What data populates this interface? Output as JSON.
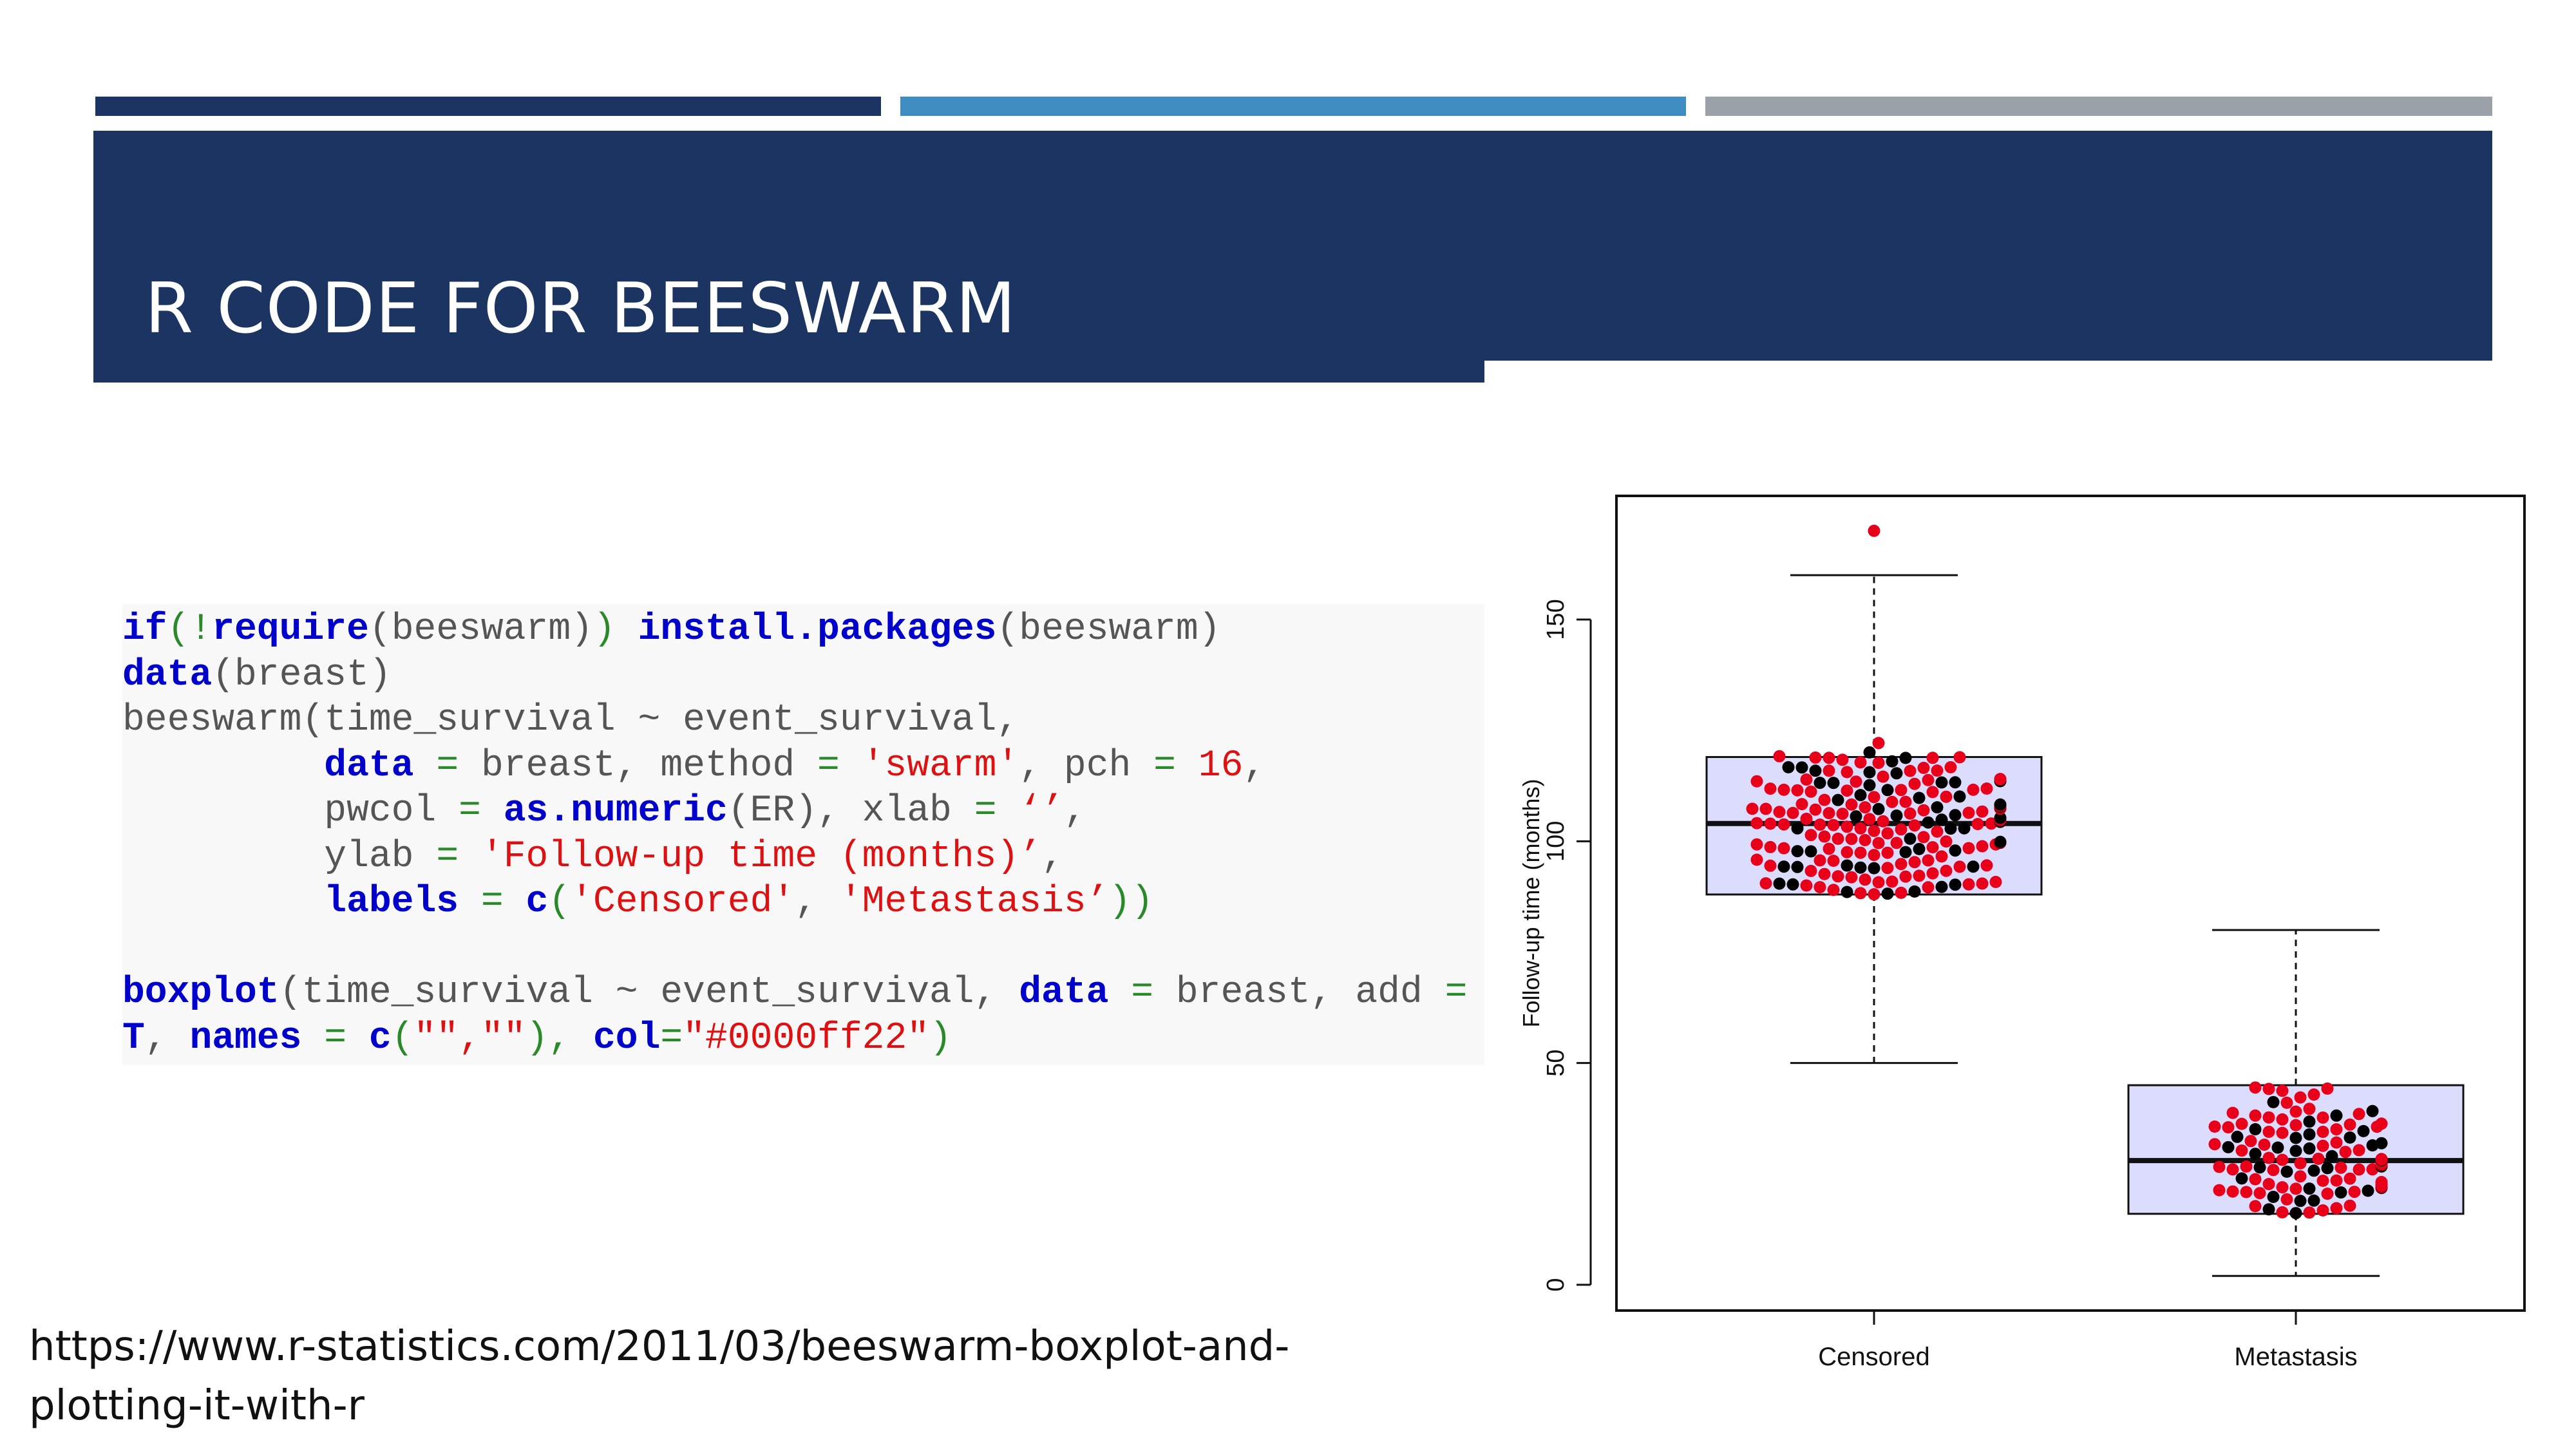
{
  "slide": {
    "title": "R CODE FOR BEESWARM",
    "source_url": "https://www.r-statistics.com/2011/03/beeswarm-boxplot-and-plotting-it-with-r"
  },
  "code": {
    "line1_if": "if",
    "line1_a": "(!",
    "line1_require": "require",
    "line1_b": "(beeswarm)",
    "line1_c": ")",
    "line1_install": "install.packages",
    "line1_d": "(beeswarm)",
    "line2_data": "data",
    "line2_a": "(breast)",
    "line3_a": "beeswarm(time_survival ~ event_survival,",
    "line4_data": "data",
    "line4_eq": "=",
    "line4_a": "breast, method",
    "line4_eq2": "=",
    "line4_swarm": "'swarm'",
    "line4_b": ", pch",
    "line4_eq3": "=",
    "line4_16": "16",
    "line4_c": ",",
    "line5_a": "pwcol",
    "line5_eq": "=",
    "line5_asnum": "as.numeric",
    "line5_b": "(ER)",
    "line5_c": ", xlab",
    "line5_eq2": "=",
    "line5_str": "‘’",
    "line5_d": ",",
    "line6_a": "ylab",
    "line6_eq": "=",
    "line6_str": "'Follow-up time (months)’",
    "line6_b": ",",
    "line7_labels": "labels",
    "line7_eq": "=",
    "line7_c": "c",
    "line7_a": "(",
    "line7_s1": "'Censored'",
    "line7_b": ",",
    "line7_s2": "'Metastasis’",
    "line7_d": "))",
    "line8_boxplot": "boxplot",
    "line8_a": "(time_survival ~ event_survival,",
    "line8_data": "data",
    "line8_eq": "=",
    "line8_b": "breast, add",
    "line8_eq2": "=",
    "line9_T": "T",
    "line9_a": ",",
    "line9_names": "names",
    "line9_eq": "=",
    "line9_c": "c",
    "line9_b": "(",
    "line9_s": "\"\",\"\"",
    "line9_d": "),",
    "line9_col": "col",
    "line9_eq2": "=",
    "line9_colstr": "\"#0000ff22\"",
    "line9_e": ")"
  },
  "colors": {
    "title_band": "#1c3461",
    "accent_bar_1": "#1c3461",
    "accent_bar_2": "#3e8cc0",
    "accent_bar_3": "#9aa1a8",
    "box_fill": "#dcdcfc",
    "point_er_pos": "#e8001a",
    "point_er_neg": "#000000"
  },
  "chart_data": {
    "type": "beeswarm-boxplot",
    "xlabel": "",
    "ylabel": "Follow-up time (months)",
    "categories": [
      "Censored",
      "Metastasis"
    ],
    "ylim": [
      0,
      170
    ],
    "yticks": [
      0,
      50,
      100,
      150
    ],
    "ytick_labels": [
      "0",
      "50",
      "100",
      "150"
    ],
    "grid": false,
    "boxes": [
      {
        "category": "Censored",
        "whisker_low": 50,
        "q1": 88,
        "median": 104,
        "q3": 119,
        "whisker_high": 160,
        "outliers": [
          170
        ]
      },
      {
        "category": "Metastasis",
        "whisker_low": 2,
        "q1": 16,
        "median": 28,
        "q3": 45,
        "whisker_high": 80,
        "outliers": []
      }
    ]
  }
}
